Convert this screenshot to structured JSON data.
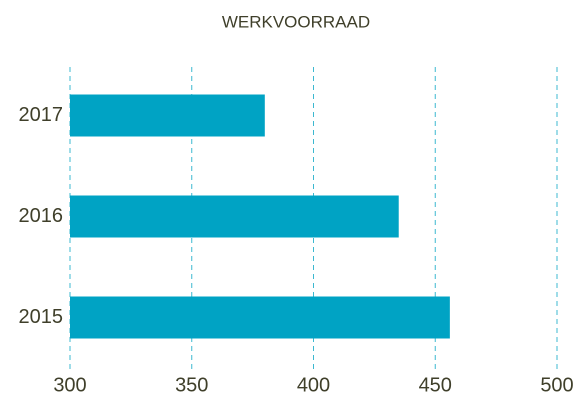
{
  "chart_data": {
    "type": "hbar",
    "title": "WERKVOORRAAD",
    "categories": [
      "2017",
      "2016",
      "2015"
    ],
    "values": [
      380,
      435,
      456
    ],
    "color": "#00a3c4",
    "xlim": [
      300,
      500
    ],
    "xticks": [
      300,
      350,
      400,
      450,
      500
    ],
    "grid": true
  }
}
